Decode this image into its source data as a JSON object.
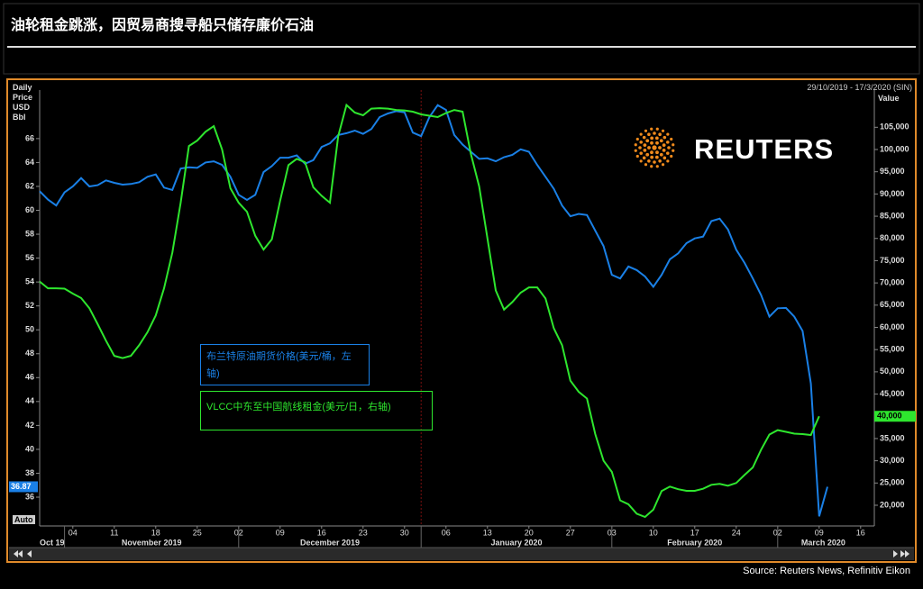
{
  "chart_data": {
    "type": "line",
    "title": "油轮租金跳涨，因贸易商搜寻船只储存廉价石油",
    "date_range": "29/10/2019 - 17/3/2020 (SIN)",
    "y_label": "Daily Price USD Bbl",
    "y2_label": "Value",
    "auto_button": "Auto",
    "watermark": "REUTERS",
    "source": "Source: Reuters News, Refinitiv Eikon",
    "x": [
      "2019-10-29",
      "2019-10-30",
      "2019-10-31",
      "2019-11-01",
      "2019-11-04",
      "2019-11-05",
      "2019-11-06",
      "2019-11-07",
      "2019-11-08",
      "2019-11-11",
      "2019-11-12",
      "2019-11-13",
      "2019-11-14",
      "2019-11-15",
      "2019-11-18",
      "2019-11-19",
      "2019-11-20",
      "2019-11-21",
      "2019-11-22",
      "2019-11-25",
      "2019-11-26",
      "2019-11-27",
      "2019-11-28",
      "2019-11-29",
      "2019-12-02",
      "2019-12-03",
      "2019-12-04",
      "2019-12-05",
      "2019-12-06",
      "2019-12-09",
      "2019-12-10",
      "2019-12-11",
      "2019-12-12",
      "2019-12-13",
      "2019-12-16",
      "2019-12-17",
      "2019-12-18",
      "2019-12-19",
      "2019-12-20",
      "2019-12-23",
      "2019-12-24",
      "2019-12-25",
      "2019-12-26",
      "2019-12-27",
      "2019-12-30",
      "2019-12-31",
      "2020-01-01",
      "2020-01-02",
      "2020-01-03",
      "2020-01-06",
      "2020-01-07",
      "2020-01-08",
      "2020-01-09",
      "2020-01-10",
      "2020-01-13",
      "2020-01-14",
      "2020-01-15",
      "2020-01-16",
      "2020-01-17",
      "2020-01-20",
      "2020-01-21",
      "2020-01-22",
      "2020-01-23",
      "2020-01-24",
      "2020-01-27",
      "2020-01-28",
      "2020-01-29",
      "2020-01-30",
      "2020-01-31",
      "2020-02-03",
      "2020-02-04",
      "2020-02-05",
      "2020-02-06",
      "2020-02-07",
      "2020-02-10",
      "2020-02-11",
      "2020-02-12",
      "2020-02-13",
      "2020-02-14",
      "2020-02-17",
      "2020-02-18",
      "2020-02-19",
      "2020-02-20",
      "2020-02-21",
      "2020-02-24",
      "2020-02-25",
      "2020-02-26",
      "2020-02-27",
      "2020-02-28",
      "2020-03-02",
      "2020-03-03",
      "2020-03-04",
      "2020-03-05",
      "2020-03-06",
      "2020-03-09",
      "2020-03-10"
    ],
    "series": [
      {
        "name": "布兰特原油期货价格(美元/桶，左轴)",
        "color": "#1a80e6",
        "last_label": "36.87",
        "values": [
          61.6,
          60.9,
          60.4,
          61.5,
          62.0,
          62.7,
          62.0,
          62.1,
          62.5,
          62.3,
          62.15,
          62.2,
          62.35,
          62.8,
          63.0,
          61.9,
          61.7,
          63.5,
          63.6,
          63.55,
          64.0,
          64.1,
          63.8,
          62.8,
          61.3,
          60.87,
          61.3,
          63.2,
          63.7,
          64.4,
          64.4,
          64.6,
          63.9,
          64.2,
          65.3,
          65.6,
          66.3,
          66.45,
          66.67,
          66.4,
          66.8,
          67.8,
          68.1,
          68.3,
          68.2,
          66.5,
          66.2,
          67.8,
          68.8,
          68.4,
          66.3,
          65.5,
          64.9,
          64.3,
          64.35,
          64.1,
          64.45,
          64.64,
          65.1,
          64.9,
          63.8,
          62.8,
          61.8,
          60.4,
          59.5,
          59.7,
          59.6,
          58.3,
          57.0,
          54.6,
          54.3,
          55.3,
          55.0,
          54.46,
          53.6,
          54.6,
          55.9,
          56.4,
          57.25,
          57.65,
          57.8,
          59.1,
          59.3,
          58.4,
          56.7,
          55.6,
          54.3,
          52.9,
          51.1,
          51.8,
          51.83,
          51.1,
          49.9,
          45.5,
          34.4,
          36.87
        ]
      },
      {
        "name": "VLCC中东至中国航线租金(美元/日，右轴)",
        "color": "#2ee62e",
        "axis": "y2",
        "last_label": "40,000",
        "values": [
          70300,
          68800,
          68800,
          68700,
          67600,
          66600,
          64300,
          60700,
          57000,
          53600,
          53100,
          53600,
          56000,
          58900,
          62700,
          68800,
          76800,
          88000,
          100800,
          102000,
          104000,
          105260,
          100000,
          91300,
          88040,
          86000,
          80600,
          77500,
          79800,
          88500,
          96500,
          97900,
          97150,
          91500,
          89600,
          88040,
          103000,
          110000,
          108300,
          107700,
          109200,
          109300,
          109200,
          108900,
          108800,
          108500,
          107900,
          107600,
          107300,
          108200,
          108900,
          108500,
          99000,
          91700,
          80000,
          68300,
          64000,
          65700,
          67800,
          69000,
          69000,
          66500,
          59800,
          56000,
          48000,
          45520,
          44000,
          36000,
          30000,
          27500,
          21100,
          20200,
          18100,
          17370,
          19000,
          23200,
          24200,
          23600,
          23240,
          23240,
          23700,
          24600,
          24800,
          24400,
          25000,
          26800,
          28500,
          32500,
          35900,
          36900,
          36500,
          36100,
          35990,
          35800,
          40000,
          null
        ]
      }
    ],
    "xlim": [
      "2019-10-29",
      "2020-03-17"
    ],
    "xticks": [
      {
        "value": "2019-11-04",
        "label": "04"
      },
      {
        "value": "2019-11-11",
        "label": "11"
      },
      {
        "value": "2019-11-18",
        "label": "18"
      },
      {
        "value": "2019-11-25",
        "label": "25"
      },
      {
        "value": "2019-12-02",
        "label": "02"
      },
      {
        "value": "2019-12-09",
        "label": "09"
      },
      {
        "value": "2019-12-16",
        "label": "16"
      },
      {
        "value": "2019-12-23",
        "label": "23"
      },
      {
        "value": "2019-12-30",
        "label": "30"
      },
      {
        "value": "2020-01-06",
        "label": "06"
      },
      {
        "value": "2020-01-13",
        "label": "13"
      },
      {
        "value": "2020-01-20",
        "label": "20"
      },
      {
        "value": "2020-01-27",
        "label": "27"
      },
      {
        "value": "2020-02-03",
        "label": "03"
      },
      {
        "value": "2020-02-10",
        "label": "10"
      },
      {
        "value": "2020-02-17",
        "label": "17"
      },
      {
        "value": "2020-02-24",
        "label": "24"
      },
      {
        "value": "2020-03-02",
        "label": "02"
      },
      {
        "value": "2020-03-09",
        "label": "09"
      },
      {
        "value": "2020-03-16",
        "label": "16"
      }
    ],
    "x_groups": [
      {
        "value": "2019-10",
        "label": "Oct 19"
      },
      {
        "value": "2019-11",
        "label": "November 2019"
      },
      {
        "value": "2019-12",
        "label": "December 2019"
      },
      {
        "value": "2020-01",
        "label": "January 2020"
      },
      {
        "value": "2020-02",
        "label": "February 2020"
      },
      {
        "value": "2020-03",
        "label": "March 2020"
      }
    ],
    "ylim": [
      33.59,
      70.06
    ],
    "yticks": [
      36,
      38,
      40,
      42,
      44,
      46,
      48,
      50,
      52,
      54,
      56,
      58,
      60,
      62,
      64,
      66
    ],
    "y2lim": [
      15340,
      113370
    ],
    "y2ticks": [
      {
        "value": 20000,
        "label": "20,000"
      },
      {
        "value": 25000,
        "label": "25,000"
      },
      {
        "value": 30000,
        "label": "30,000"
      },
      {
        "value": 35000,
        "label": "35,000"
      },
      {
        "value": 40000,
        "label": "40,000"
      },
      {
        "value": 45000,
        "label": "45,000"
      },
      {
        "value": 50000,
        "label": "50,000"
      },
      {
        "value": 55000,
        "label": "55,000"
      },
      {
        "value": 60000,
        "label": "60,000"
      },
      {
        "value": 65000,
        "label": "65,000"
      },
      {
        "value": 70000,
        "label": "70,000"
      },
      {
        "value": 75000,
        "label": "75,000"
      },
      {
        "value": 80000,
        "label": "80,000"
      },
      {
        "value": 85000,
        "label": "85,000"
      },
      {
        "value": 90000,
        "label": "90,000"
      },
      {
        "value": 95000,
        "label": "95,000"
      },
      {
        "value": 100000,
        "label": "100,000"
      },
      {
        "value": 105000,
        "label": "105,000"
      }
    ],
    "grid": false
  }
}
